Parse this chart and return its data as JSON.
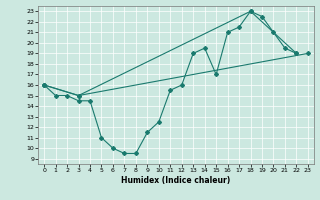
{
  "xlabel": "Humidex (Indice chaleur)",
  "background_color": "#cce8e0",
  "line_color": "#1a7a6e",
  "xlim": [
    -0.5,
    23.5
  ],
  "ylim": [
    8.5,
    23.5
  ],
  "yticks": [
    9,
    10,
    11,
    12,
    13,
    14,
    15,
    16,
    17,
    18,
    19,
    20,
    21,
    22,
    23
  ],
  "xticks": [
    0,
    1,
    2,
    3,
    4,
    5,
    6,
    7,
    8,
    9,
    10,
    11,
    12,
    13,
    14,
    15,
    16,
    17,
    18,
    19,
    20,
    21,
    22,
    23
  ],
  "curve1_x": [
    0,
    1,
    2,
    3,
    4,
    5,
    6,
    7,
    8,
    9,
    10,
    11,
    12,
    13,
    14,
    15,
    16,
    17,
    18,
    19,
    20,
    21,
    22
  ],
  "curve1_y": [
    16,
    15,
    15,
    14.5,
    14.5,
    11,
    10,
    9.5,
    9.5,
    11.5,
    12.5,
    15.5,
    16,
    19,
    19.5,
    17,
    21,
    21.5,
    23,
    22.5,
    21,
    19.5,
    19
  ],
  "curve2_x": [
    0,
    3,
    23
  ],
  "curve2_y": [
    16,
    15,
    19
  ],
  "curve3_x": [
    0,
    3,
    18,
    22
  ],
  "curve3_y": [
    16,
    15,
    23,
    19
  ]
}
